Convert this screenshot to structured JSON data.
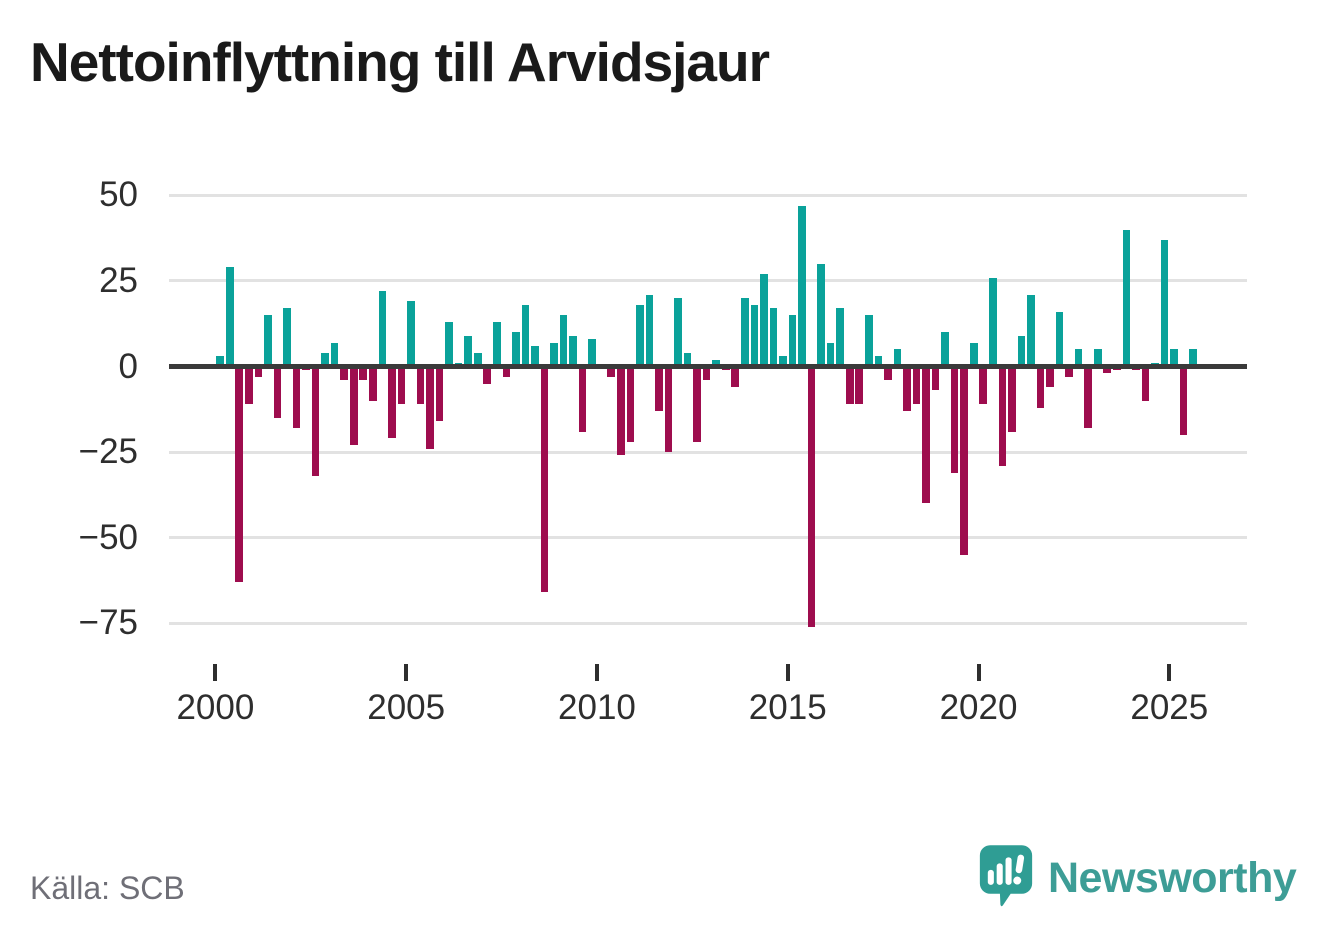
{
  "title": "Nettoinflyttning till Arvidsjaur",
  "source": {
    "label": "Källa: SCB"
  },
  "logo": {
    "text": "Newsworthy",
    "icon": "newsworthy-speech-bubble-chart-icon"
  },
  "colors": {
    "positive": "#0aa29a",
    "negative": "#9e0d4e",
    "zero_line": "#3a3a3a",
    "gridline": "#e2e2e2",
    "axis_text": "#2e2e2e",
    "title_text": "#1a1a1a",
    "source_text": "#6f6f77",
    "logo_teal": "#3d9d96"
  },
  "chart_data": {
    "type": "bar",
    "title": "Nettoinflyttning till Arvidsjaur",
    "frequency": "quarterly",
    "first_period": "2000Q1",
    "last_period": "2025Q3",
    "x_tick_labels": [
      "2000",
      "2005",
      "2010",
      "2015",
      "2020",
      "2025"
    ],
    "y_ticks": [
      50,
      25,
      0,
      -25,
      -50,
      -75
    ],
    "ylim": [
      -80,
      52
    ],
    "grid": true,
    "legend": false,
    "positive_color": "#0aa29a",
    "negative_color": "#9e0d4e",
    "periods": [
      "2000Q1",
      "2000Q2",
      "2000Q3",
      "2000Q4",
      "2001Q1",
      "2001Q2",
      "2001Q3",
      "2001Q4",
      "2002Q1",
      "2002Q2",
      "2002Q3",
      "2002Q4",
      "2003Q1",
      "2003Q2",
      "2003Q3",
      "2003Q4",
      "2004Q1",
      "2004Q2",
      "2004Q3",
      "2004Q4",
      "2005Q1",
      "2005Q2",
      "2005Q3",
      "2005Q4",
      "2006Q1",
      "2006Q2",
      "2006Q3",
      "2006Q4",
      "2007Q1",
      "2007Q2",
      "2007Q3",
      "2007Q4",
      "2008Q1",
      "2008Q2",
      "2008Q3",
      "2008Q4",
      "2009Q1",
      "2009Q2",
      "2009Q3",
      "2009Q4",
      "2010Q1",
      "2010Q2",
      "2010Q3",
      "2010Q4",
      "2011Q1",
      "2011Q2",
      "2011Q3",
      "2011Q4",
      "2012Q1",
      "2012Q2",
      "2012Q3",
      "2012Q4",
      "2013Q1",
      "2013Q2",
      "2013Q3",
      "2013Q4",
      "2014Q1",
      "2014Q2",
      "2014Q3",
      "2014Q4",
      "2015Q1",
      "2015Q2",
      "2015Q3",
      "2015Q4",
      "2016Q1",
      "2016Q2",
      "2016Q3",
      "2016Q4",
      "2017Q1",
      "2017Q2",
      "2017Q3",
      "2017Q4",
      "2018Q1",
      "2018Q2",
      "2018Q3",
      "2018Q4",
      "2019Q1",
      "2019Q2",
      "2019Q3",
      "2019Q4",
      "2020Q1",
      "2020Q2",
      "2020Q3",
      "2020Q4",
      "2021Q1",
      "2021Q2",
      "2021Q3",
      "2021Q4",
      "2022Q1",
      "2022Q2",
      "2022Q3",
      "2022Q4",
      "2023Q1",
      "2023Q2",
      "2023Q3",
      "2023Q4",
      "2024Q1",
      "2024Q2",
      "2024Q3",
      "2024Q4",
      "2025Q1",
      "2025Q2",
      "2025Q3"
    ],
    "values": [
      3,
      29,
      -63,
      -11,
      -3,
      15,
      -15,
      17,
      -18,
      -1,
      -32,
      4,
      7,
      -4,
      -23,
      -4,
      -10,
      22,
      -21,
      -11,
      19,
      -11,
      -24,
      -16,
      13,
      1,
      9,
      4,
      -5,
      13,
      -3,
      10,
      18,
      6,
      -66,
      7,
      15,
      9,
      -19,
      8,
      0,
      -3,
      -26,
      -22,
      18,
      21,
      -13,
      -25,
      20,
      4,
      -22,
      -4,
      2,
      -1,
      -6,
      20,
      18,
      27,
      17,
      3,
      15,
      47,
      -76,
      30,
      7,
      17,
      -11,
      -11,
      15,
      3,
      -4,
      5,
      -13,
      -11,
      -40,
      -7,
      10,
      -31,
      -55,
      7,
      -11,
      26,
      -29,
      -19,
      9,
      21,
      -12,
      -6,
      16,
      -3,
      5,
      -18,
      5,
      -2,
      -1,
      40,
      -1,
      -10,
      1,
      37,
      5,
      -20,
      5
    ]
  }
}
